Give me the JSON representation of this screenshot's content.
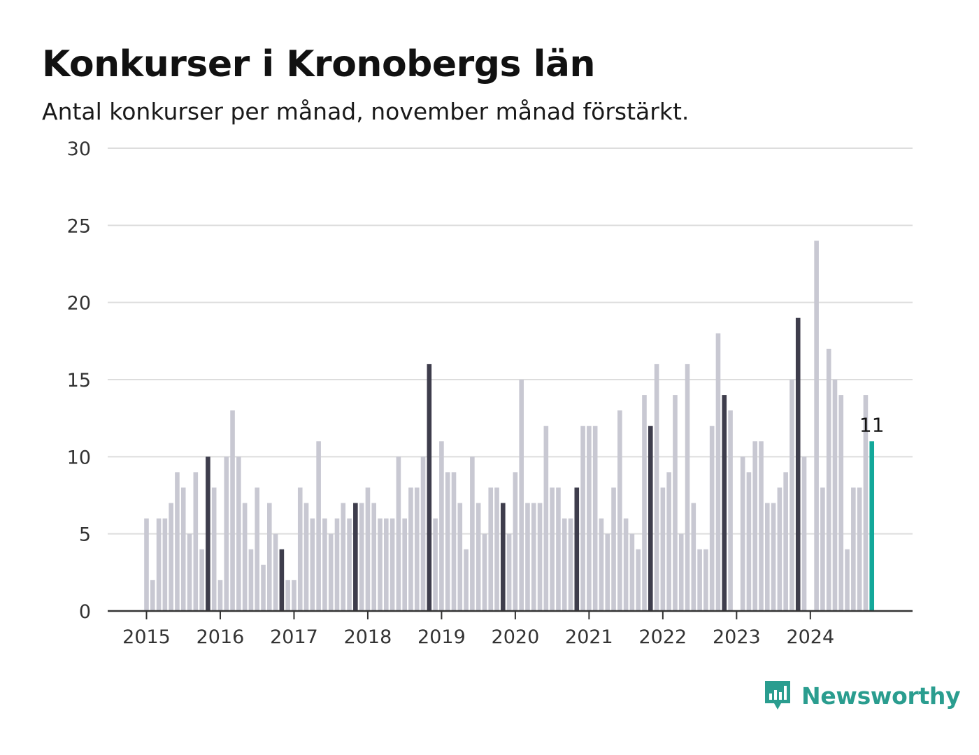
{
  "header": {
    "title": "Konkurser i Kronobergs län",
    "subtitle": "Antal konkurser per månad, november månad förstärkt."
  },
  "brand": {
    "name": "Newsworthy",
    "icon": "bar-chart-speech-bubble-icon",
    "color": "#2a9d8f"
  },
  "colors": {
    "regular": "#c8c8d2",
    "november": "#3e3d4c",
    "latest": "#13a89a",
    "grid": "#dddddd",
    "axis": "#333333"
  },
  "chart_data": {
    "type": "bar",
    "title": "Konkurser i Kronobergs län",
    "subtitle": "Antal konkurser per månad, november månad förstärkt.",
    "start_month": "2015-01",
    "highlight_month": "november",
    "x_tick_labels": [
      "2015",
      "2016",
      "2017",
      "2018",
      "2019",
      "2020",
      "2021",
      "2022",
      "2023",
      "2024"
    ],
    "y_ticks": [
      0,
      5,
      10,
      15,
      20,
      25,
      30
    ],
    "ylim": [
      0,
      30
    ],
    "grid": true,
    "values": [
      6,
      2,
      6,
      6,
      7,
      9,
      8,
      5,
      9,
      4,
      10,
      8,
      2,
      10,
      13,
      10,
      7,
      4,
      8,
      3,
      7,
      5,
      4,
      2,
      2,
      8,
      7,
      6,
      11,
      6,
      5,
      6,
      7,
      6,
      7,
      7,
      8,
      7,
      6,
      6,
      6,
      10,
      6,
      8,
      8,
      10,
      16,
      6,
      11,
      9,
      9,
      7,
      4,
      10,
      7,
      5,
      8,
      8,
      7,
      5,
      9,
      15,
      7,
      7,
      7,
      12,
      8,
      8,
      6,
      6,
      8,
      12,
      12,
      12,
      6,
      5,
      8,
      13,
      6,
      5,
      4,
      14,
      12,
      16,
      8,
      9,
      14,
      5,
      16,
      7,
      4,
      4,
      12,
      18,
      14,
      13,
      0,
      10,
      9,
      11,
      11,
      7,
      7,
      8,
      9,
      15,
      19,
      10,
      0,
      24,
      8,
      17,
      15,
      14,
      4,
      8,
      8,
      14,
      11
    ],
    "annotation": {
      "label": "11",
      "value": 11
    }
  }
}
